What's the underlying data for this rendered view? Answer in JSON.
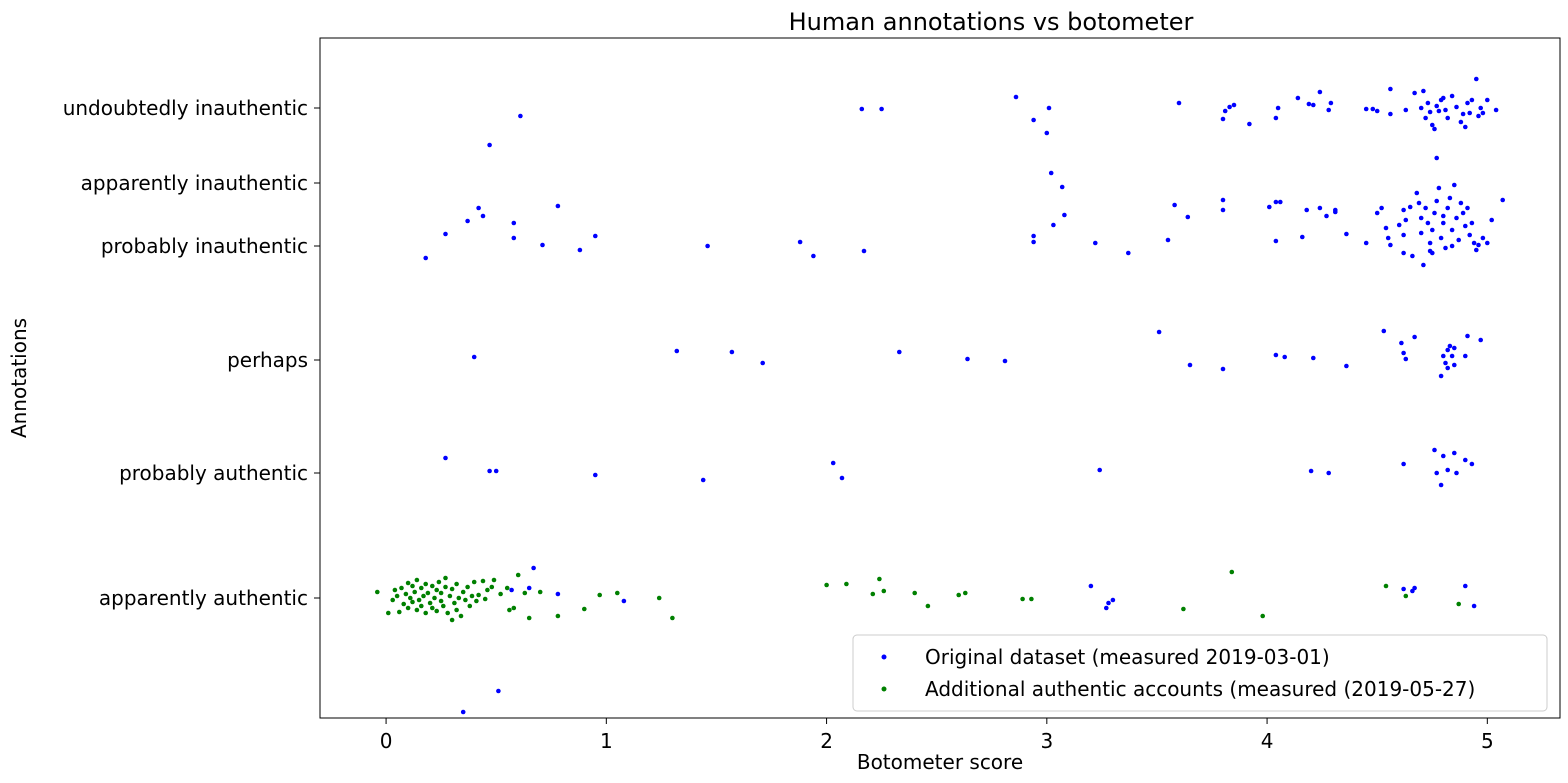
{
  "chart_data": {
    "type": "scatter",
    "title": "Human annotations vs botometer",
    "xlabel": "Botometer score",
    "ylabel": "Annotations",
    "xlim": [
      -0.3,
      5.33
    ],
    "ylim": [
      -1.2,
      5.6
    ],
    "x_ticks": [
      0,
      1,
      2,
      3,
      4,
      5
    ],
    "x_tick_labels": [
      "0",
      "1",
      "2",
      "3",
      "4",
      "5"
    ],
    "y_ticks": [
      0,
      1.25,
      2.38,
      3.52,
      4.15,
      4.9
    ],
    "y_tick_labels": [
      "apparently authentic",
      "probably authentic",
      "perhaps",
      "probably inauthentic",
      "apparently inauthentic",
      "undoubtedly inauthentic"
    ],
    "grid": false,
    "legend_placement": "bottom-right",
    "series": [
      {
        "name": "Original dataset (measured 2019-03-01)",
        "color": "#0000ff",
        "points": [
          [
            0.61,
            4.82
          ],
          [
            0.47,
            4.53
          ],
          [
            2.16,
            4.89
          ],
          [
            2.25,
            4.89
          ],
          [
            2.86,
            5.01
          ],
          [
            2.94,
            4.78
          ],
          [
            3.0,
            4.65
          ],
          [
            3.01,
            4.9
          ],
          [
            3.6,
            4.95
          ],
          [
            3.8,
            4.79
          ],
          [
            3.81,
            4.87
          ],
          [
            3.83,
            4.91
          ],
          [
            3.85,
            4.93
          ],
          [
            3.92,
            4.74
          ],
          [
            4.04,
            4.8
          ],
          [
            4.05,
            4.9
          ],
          [
            4.14,
            5.0
          ],
          [
            4.19,
            4.94
          ],
          [
            4.21,
            4.93
          ],
          [
            4.24,
            5.06
          ],
          [
            4.28,
            4.88
          ],
          [
            4.29,
            4.95
          ],
          [
            4.45,
            4.89
          ],
          [
            4.48,
            4.89
          ],
          [
            4.5,
            4.87
          ],
          [
            4.56,
            5.09
          ],
          [
            4.56,
            4.84
          ],
          [
            4.63,
            4.88
          ],
          [
            4.67,
            5.05
          ],
          [
            4.7,
            4.9
          ],
          [
            4.71,
            5.07
          ],
          [
            4.73,
            4.95
          ],
          [
            4.74,
            4.86
          ],
          [
            4.75,
            4.73
          ],
          [
            4.76,
            4.69
          ],
          [
            4.77,
            4.92
          ],
          [
            4.78,
            4.87
          ],
          [
            4.79,
            4.98
          ],
          [
            4.8,
            5.0
          ],
          [
            4.81,
            4.88
          ],
          [
            4.82,
            4.8
          ],
          [
            4.84,
            5.02
          ],
          [
            4.86,
            4.91
          ],
          [
            4.88,
            4.76
          ],
          [
            4.89,
            4.84
          ],
          [
            4.9,
            4.71
          ],
          [
            4.91,
            4.95
          ],
          [
            4.92,
            4.85
          ],
          [
            4.93,
            4.98
          ],
          [
            4.95,
            5.19
          ],
          [
            4.96,
            4.82
          ],
          [
            4.97,
            4.9
          ],
          [
            4.98,
            4.85
          ],
          [
            5.0,
            4.98
          ],
          [
            5.04,
            4.88
          ],
          [
            4.72,
            4.8
          ],
          [
            0.18,
            3.4
          ],
          [
            0.27,
            3.64
          ],
          [
            0.37,
            3.77
          ],
          [
            0.42,
            3.9
          ],
          [
            0.44,
            3.82
          ],
          [
            0.58,
            3.75
          ],
          [
            0.58,
            3.6
          ],
          [
            0.71,
            3.53
          ],
          [
            0.78,
            3.92
          ],
          [
            0.88,
            3.48
          ],
          [
            0.95,
            3.62
          ],
          [
            1.46,
            3.52
          ],
          [
            1.88,
            3.56
          ],
          [
            1.94,
            3.42
          ],
          [
            2.17,
            3.47
          ],
          [
            2.94,
            3.62
          ],
          [
            2.94,
            3.56
          ],
          [
            3.02,
            4.25
          ],
          [
            3.03,
            3.73
          ],
          [
            3.07,
            4.11
          ],
          [
            3.08,
            3.83
          ],
          [
            3.22,
            3.55
          ],
          [
            3.37,
            3.45
          ],
          [
            3.55,
            3.58
          ],
          [
            3.58,
            3.93
          ],
          [
            3.64,
            3.81
          ],
          [
            3.8,
            3.98
          ],
          [
            3.8,
            3.88
          ],
          [
            4.01,
            3.91
          ],
          [
            4.04,
            3.57
          ],
          [
            4.06,
            3.96
          ],
          [
            4.04,
            3.96
          ],
          [
            4.16,
            3.61
          ],
          [
            4.18,
            3.88
          ],
          [
            4.24,
            3.9
          ],
          [
            4.27,
            3.82
          ],
          [
            4.31,
            3.86
          ],
          [
            4.31,
            3.88
          ],
          [
            4.36,
            3.64
          ],
          [
            4.45,
            3.55
          ],
          [
            4.5,
            3.85
          ],
          [
            4.52,
            3.9
          ],
          [
            4.54,
            3.7
          ],
          [
            4.55,
            3.6
          ],
          [
            4.56,
            3.53
          ],
          [
            4.6,
            3.73
          ],
          [
            4.62,
            3.63
          ],
          [
            4.62,
            3.88
          ],
          [
            4.62,
            3.45
          ],
          [
            4.63,
            3.78
          ],
          [
            4.65,
            3.91
          ],
          [
            4.66,
            3.42
          ],
          [
            4.68,
            4.05
          ],
          [
            4.69,
            3.95
          ],
          [
            4.7,
            3.8
          ],
          [
            4.7,
            3.65
          ],
          [
            4.71,
            3.33
          ],
          [
            4.72,
            3.9
          ],
          [
            4.73,
            3.75
          ],
          [
            4.74,
            3.55
          ],
          [
            4.74,
            3.47
          ],
          [
            4.75,
            3.68
          ],
          [
            4.76,
            3.85
          ],
          [
            4.77,
            3.97
          ],
          [
            4.77,
            4.4
          ],
          [
            4.78,
            4.1
          ],
          [
            4.79,
            3.6
          ],
          [
            4.8,
            3.75
          ],
          [
            4.81,
            3.5
          ],
          [
            4.82,
            3.9
          ],
          [
            4.83,
            4.0
          ],
          [
            4.84,
            3.68
          ],
          [
            4.84,
            3.52
          ],
          [
            4.85,
            4.13
          ],
          [
            4.86,
            3.8
          ],
          [
            4.87,
            3.58
          ],
          [
            4.88,
            3.95
          ],
          [
            4.89,
            3.85
          ],
          [
            4.9,
            3.72
          ],
          [
            4.91,
            3.9
          ],
          [
            4.92,
            3.63
          ],
          [
            4.93,
            3.75
          ],
          [
            4.94,
            3.55
          ],
          [
            4.95,
            3.48
          ],
          [
            4.96,
            3.53
          ],
          [
            4.98,
            3.6
          ],
          [
            5.0,
            3.55
          ],
          [
            5.02,
            3.78
          ],
          [
            5.07,
            3.98
          ],
          [
            4.75,
            3.45
          ],
          [
            4.8,
            3.82
          ],
          [
            0.4,
            2.41
          ],
          [
            1.32,
            2.47
          ],
          [
            1.57,
            2.46
          ],
          [
            1.71,
            2.35
          ],
          [
            2.33,
            2.46
          ],
          [
            2.64,
            2.39
          ],
          [
            2.81,
            2.37
          ],
          [
            3.51,
            2.66
          ],
          [
            3.65,
            2.33
          ],
          [
            3.8,
            2.29
          ],
          [
            4.04,
            2.43
          ],
          [
            4.08,
            2.41
          ],
          [
            4.21,
            2.4
          ],
          [
            4.36,
            2.32
          ],
          [
            4.53,
            2.67
          ],
          [
            4.61,
            2.55
          ],
          [
            4.62,
            2.45
          ],
          [
            4.63,
            2.39
          ],
          [
            4.67,
            2.61
          ],
          [
            4.79,
            2.22
          ],
          [
            4.8,
            2.42
          ],
          [
            4.81,
            2.35
          ],
          [
            4.82,
            2.48
          ],
          [
            4.82,
            2.3
          ],
          [
            4.83,
            2.52
          ],
          [
            4.84,
            2.42
          ],
          [
            4.85,
            2.5
          ],
          [
            4.85,
            2.33
          ],
          [
            4.9,
            2.42
          ],
          [
            4.91,
            2.62
          ],
          [
            4.97,
            2.58
          ],
          [
            0.27,
            1.4
          ],
          [
            0.47,
            1.27
          ],
          [
            0.5,
            1.27
          ],
          [
            0.95,
            1.23
          ],
          [
            1.44,
            1.18
          ],
          [
            2.03,
            1.35
          ],
          [
            2.07,
            1.2
          ],
          [
            3.24,
            1.28
          ],
          [
            4.2,
            1.27
          ],
          [
            4.28,
            1.25
          ],
          [
            4.62,
            1.34
          ],
          [
            4.76,
            1.48
          ],
          [
            4.77,
            1.25
          ],
          [
            4.79,
            1.13
          ],
          [
            4.8,
            1.42
          ],
          [
            4.82,
            1.28
          ],
          [
            4.85,
            1.45
          ],
          [
            4.86,
            1.25
          ],
          [
            4.9,
            1.38
          ],
          [
            4.93,
            1.34
          ],
          [
            0.57,
            0.08
          ],
          [
            0.65,
            0.1
          ],
          [
            0.67,
            0.3
          ],
          [
            0.78,
            0.04
          ],
          [
            1.08,
            -0.03
          ],
          [
            3.2,
            0.12
          ],
          [
            3.27,
            -0.1
          ],
          [
            3.28,
            -0.05
          ],
          [
            3.3,
            -0.02
          ],
          [
            4.62,
            0.09
          ],
          [
            4.66,
            0.07
          ],
          [
            4.67,
            0.1
          ],
          [
            4.9,
            0.12
          ],
          [
            4.94,
            -0.08
          ],
          [
            0.35,
            -1.14
          ],
          [
            0.51,
            -0.93
          ]
        ]
      },
      {
        "name": "Additional authentic accounts (measured (2019-05-27)",
        "color": "#008000",
        "points": [
          [
            -0.04,
            0.06
          ],
          [
            0.01,
            -0.15
          ],
          [
            0.03,
            -0.02
          ],
          [
            0.04,
            0.08
          ],
          [
            0.05,
            0.02
          ],
          [
            0.06,
            -0.14
          ],
          [
            0.07,
            0.1
          ],
          [
            0.08,
            -0.06
          ],
          [
            0.09,
            0.04
          ],
          [
            0.1,
            0.15
          ],
          [
            0.1,
            -0.1
          ],
          [
            0.11,
            0.0
          ],
          [
            0.12,
            0.12
          ],
          [
            0.12,
            -0.04
          ],
          [
            0.13,
            0.06
          ],
          [
            0.14,
            -0.12
          ],
          [
            0.14,
            0.18
          ],
          [
            0.15,
            -0.02
          ],
          [
            0.16,
            0.1
          ],
          [
            0.16,
            -0.08
          ],
          [
            0.17,
            0.02
          ],
          [
            0.18,
            0.14
          ],
          [
            0.18,
            -0.15
          ],
          [
            0.19,
            0.05
          ],
          [
            0.2,
            -0.05
          ],
          [
            0.21,
            0.12
          ],
          [
            0.21,
            -0.1
          ],
          [
            0.22,
            0.0
          ],
          [
            0.23,
            0.08
          ],
          [
            0.23,
            -0.13
          ],
          [
            0.24,
            0.16
          ],
          [
            0.25,
            -0.03
          ],
          [
            0.25,
            0.05
          ],
          [
            0.26,
            -0.08
          ],
          [
            0.27,
            0.11
          ],
          [
            0.27,
            0.2
          ],
          [
            0.28,
            -0.15
          ],
          [
            0.29,
            0.02
          ],
          [
            0.3,
            -0.22
          ],
          [
            0.3,
            0.09
          ],
          [
            0.31,
            -0.05
          ],
          [
            0.32,
            0.14
          ],
          [
            0.32,
            -0.12
          ],
          [
            0.33,
            0.0
          ],
          [
            0.34,
            -0.18
          ],
          [
            0.35,
            0.06
          ],
          [
            0.36,
            -0.02
          ],
          [
            0.37,
            0.11
          ],
          [
            0.38,
            -0.08
          ],
          [
            0.39,
            0.02
          ],
          [
            0.4,
            0.16
          ],
          [
            0.41,
            -0.03
          ],
          [
            0.42,
            0.03
          ],
          [
            0.44,
            0.17
          ],
          [
            0.45,
            -0.01
          ],
          [
            0.46,
            0.08
          ],
          [
            0.48,
            0.11
          ],
          [
            0.49,
            0.18
          ],
          [
            0.52,
            0.04
          ],
          [
            0.55,
            0.1
          ],
          [
            0.56,
            -0.12
          ],
          [
            0.58,
            -0.1
          ],
          [
            0.6,
            0.23
          ],
          [
            0.63,
            0.05
          ],
          [
            0.65,
            -0.2
          ],
          [
            0.7,
            0.06
          ],
          [
            0.78,
            -0.18
          ],
          [
            0.9,
            -0.11
          ],
          [
            0.97,
            0.03
          ],
          [
            1.05,
            0.05
          ],
          [
            1.24,
            0.0
          ],
          [
            1.3,
            -0.2
          ],
          [
            2.0,
            0.13
          ],
          [
            2.09,
            0.14
          ],
          [
            2.21,
            0.04
          ],
          [
            2.24,
            0.19
          ],
          [
            2.26,
            0.07
          ],
          [
            2.4,
            0.05
          ],
          [
            2.46,
            -0.08
          ],
          [
            2.6,
            0.03
          ],
          [
            2.63,
            0.05
          ],
          [
            2.89,
            -0.01
          ],
          [
            2.93,
            -0.01
          ],
          [
            3.62,
            -0.11
          ],
          [
            3.84,
            0.26
          ],
          [
            3.98,
            -0.18
          ],
          [
            4.54,
            0.12
          ],
          [
            4.63,
            0.02
          ],
          [
            4.87,
            -0.06
          ]
        ]
      }
    ]
  }
}
